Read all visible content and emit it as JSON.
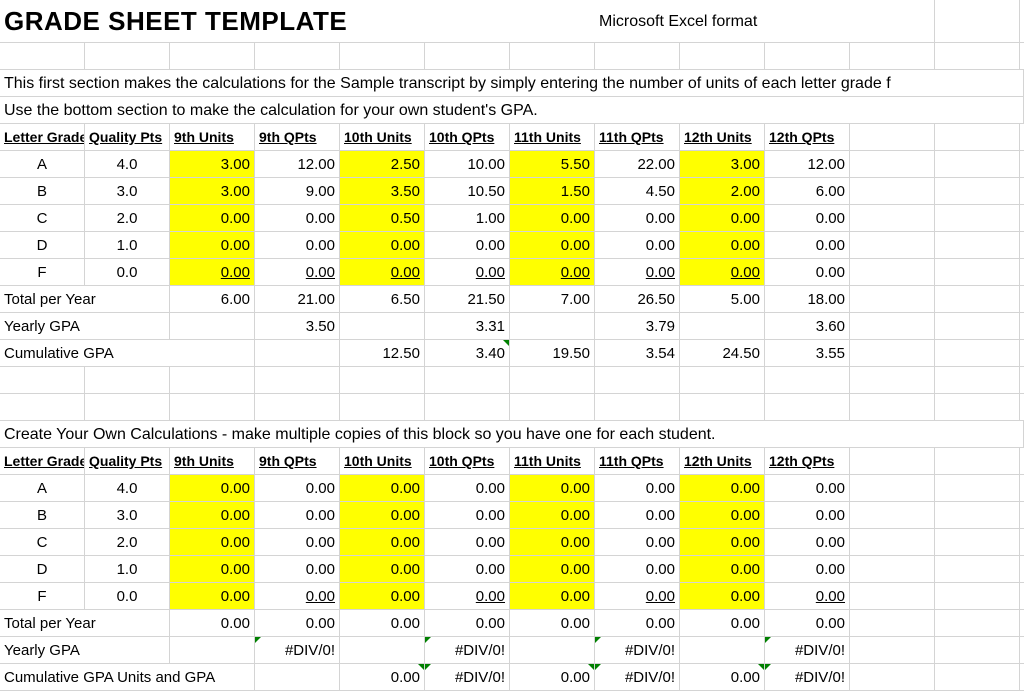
{
  "title": "GRADE SHEET TEMPLATE",
  "format_note": "Microsoft Excel format",
  "intro_line1": "This first section makes the calculations for the Sample transcript by simply entering the number of units of each letter grade f",
  "intro_line2": "Use the bottom section to make the calculation for your own student's GPA.",
  "headers": [
    "Letter Grade",
    "Quality Pts",
    "9th Units",
    "9th QPts",
    "10th Units",
    "10th QPts",
    "11th Units",
    "11th QPts",
    "12th Units",
    "12th QPts"
  ],
  "sample": {
    "rows": [
      {
        "grade": "A",
        "qp": "4.0",
        "v": [
          "3.00",
          "12.00",
          "2.50",
          "10.00",
          "5.50",
          "22.00",
          "3.00",
          "12.00"
        ]
      },
      {
        "grade": "B",
        "qp": "3.0",
        "v": [
          "3.00",
          "9.00",
          "3.50",
          "10.50",
          "1.50",
          "4.50",
          "2.00",
          "6.00"
        ]
      },
      {
        "grade": "C",
        "qp": "2.0",
        "v": [
          "0.00",
          "0.00",
          "0.50",
          "1.00",
          "0.00",
          "0.00",
          "0.00",
          "0.00"
        ]
      },
      {
        "grade": "D",
        "qp": "1.0",
        "v": [
          "0.00",
          "0.00",
          "0.00",
          "0.00",
          "0.00",
          "0.00",
          "0.00",
          "0.00"
        ]
      },
      {
        "grade": "F",
        "qp": "0.0",
        "v": [
          "0.00",
          "0.00",
          "0.00",
          "0.00",
          "0.00",
          "0.00",
          "0.00",
          "0.00"
        ]
      }
    ],
    "total_label": "Total per Year",
    "total": [
      "6.00",
      "21.00",
      "6.50",
      "21.50",
      "7.00",
      "26.50",
      "5.00",
      "18.00"
    ],
    "yearly_label": "Yearly GPA",
    "yearly": [
      "",
      "3.50",
      "",
      "3.31",
      "",
      "3.79",
      "",
      "3.60"
    ],
    "cumulative_label": "Cumulative GPA",
    "cumulative": [
      "",
      "",
      "12.50",
      "3.40",
      "19.50",
      "3.54",
      "24.50",
      "3.55"
    ]
  },
  "own_intro": "Create Your Own Calculations -  make multiple copies of this block so you have one for each student.",
  "own": {
    "rows": [
      {
        "grade": "A",
        "qp": "4.0",
        "v": [
          "0.00",
          "0.00",
          "0.00",
          "0.00",
          "0.00",
          "0.00",
          "0.00",
          "0.00"
        ]
      },
      {
        "grade": "B",
        "qp": "3.0",
        "v": [
          "0.00",
          "0.00",
          "0.00",
          "0.00",
          "0.00",
          "0.00",
          "0.00",
          "0.00"
        ]
      },
      {
        "grade": "C",
        "qp": "2.0",
        "v": [
          "0.00",
          "0.00",
          "0.00",
          "0.00",
          "0.00",
          "0.00",
          "0.00",
          "0.00"
        ]
      },
      {
        "grade": "D",
        "qp": "1.0",
        "v": [
          "0.00",
          "0.00",
          "0.00",
          "0.00",
          "0.00",
          "0.00",
          "0.00",
          "0.00"
        ]
      },
      {
        "grade": "F",
        "qp": "0.0",
        "v": [
          "0.00",
          "0.00",
          "0.00",
          "0.00",
          "0.00",
          "0.00",
          "0.00",
          "0.00"
        ]
      }
    ],
    "total_label": "Total per Year",
    "total": [
      "0.00",
      "0.00",
      "0.00",
      "0.00",
      "0.00",
      "0.00",
      "0.00",
      "0.00"
    ],
    "yearly_label": "Yearly GPA",
    "yearly": [
      "",
      "#DIV/0!",
      "",
      "#DIV/0!",
      "",
      "#DIV/0!",
      "",
      "#DIV/0!"
    ],
    "cumulative_label": "Cumulative GPA Units and GPA",
    "cumulative": [
      "",
      "",
      "0.00",
      "#DIV/0!",
      "0.00",
      "#DIV/0!",
      "0.00",
      "#DIV/0!"
    ]
  },
  "colors": {
    "input_fill": "#ffff00",
    "gridline": "#d4d4d4",
    "error_marker": "#008000"
  }
}
